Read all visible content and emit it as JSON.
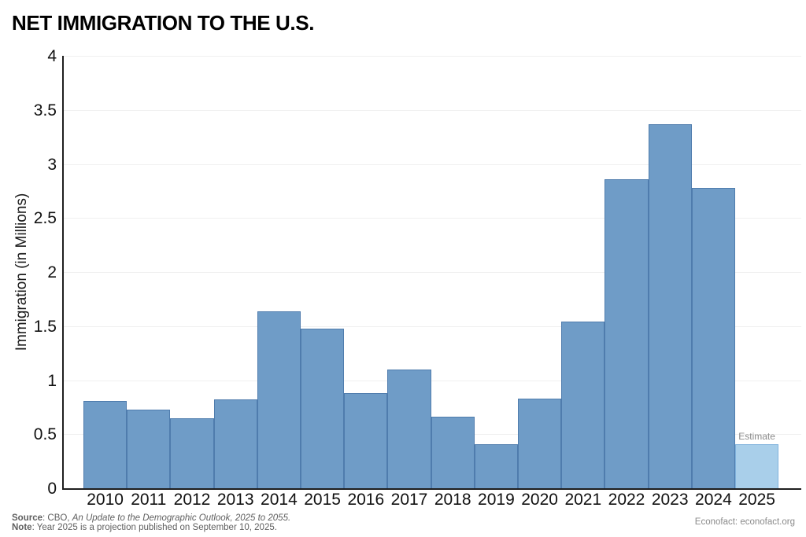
{
  "title": "NET IMMIGRATION TO THE U.S.",
  "chart_data": {
    "type": "bar",
    "title": "NET IMMIGRATION TO THE U.S.",
    "xlabel": "",
    "ylabel": "Immigration (in Millions)",
    "ylim": [
      0,
      4
    ],
    "ytick_step": 0.5,
    "grid": true,
    "legend": "none",
    "categories": [
      "2010",
      "2011",
      "2012",
      "2013",
      "2014",
      "2015",
      "2016",
      "2017",
      "2018",
      "2019",
      "2020",
      "2021",
      "2022",
      "2023",
      "2024",
      "2025"
    ],
    "values": [
      0.81,
      0.73,
      0.65,
      0.82,
      1.64,
      1.48,
      0.88,
      1.1,
      0.66,
      0.41,
      0.83,
      1.54,
      2.86,
      3.37,
      2.78,
      0.41
    ],
    "estimate_categories": [
      "2025"
    ],
    "annotation": {
      "text": "Estimate",
      "category": "2025"
    }
  },
  "colors": {
    "bar_fill": "#6f9cc7",
    "bar_stroke": "#4f7cad",
    "estimate_fill": "#a9cfea",
    "estimate_stroke": "#7fb2dc",
    "axis": "#1f1f1f",
    "grid": "#f0f0f0"
  },
  "footer": {
    "source_label": "Source",
    "source_text": ": CBO, ",
    "source_italic": "An Update to the Demographic Outlook, 2025 to 2055.",
    "note_label": "Note",
    "note_text": ": Year 2025 is a projection published on September 10, 2025.",
    "credit": "Econofact: econofact.org"
  }
}
